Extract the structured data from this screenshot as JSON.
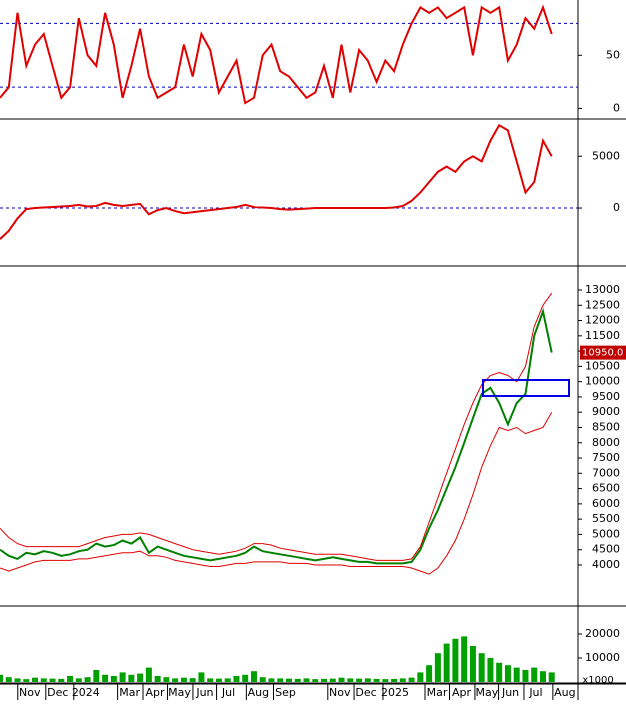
{
  "chart_data": [
    {
      "type": "line",
      "ylim": [
        -9,
        102
      ],
      "yticks": [
        0,
        50
      ],
      "levels": [
        20,
        80
      ],
      "xlim": [
        0,
        66
      ],
      "series": [
        {
          "color": "#e00000",
          "values": [
            10,
            20,
            90,
            40,
            60,
            70,
            40,
            10,
            20,
            85,
            50,
            40,
            90,
            60,
            10,
            40,
            75,
            30,
            10,
            15,
            20,
            60,
            30,
            70,
            55,
            15,
            30,
            45,
            5,
            10,
            50,
            60,
            35,
            30,
            20,
            10,
            15,
            40,
            10,
            60,
            15,
            55,
            45,
            25,
            45,
            35,
            60,
            80,
            95,
            90,
            95,
            85,
            90,
            95,
            50,
            95,
            90,
            95,
            45,
            60,
            85,
            75,
            95,
            70
          ]
        }
      ]
    },
    {
      "type": "line",
      "ylim": [
        -5500,
        8500
      ],
      "yticks": [
        0,
        5000
      ],
      "levels": [
        0
      ],
      "xlim": [
        0,
        66
      ],
      "series": [
        {
          "color": "#e00000",
          "values": [
            -3000,
            -2200,
            -1000,
            -100,
            0,
            50,
            100,
            150,
            200,
            300,
            150,
            200,
            500,
            300,
            200,
            300,
            400,
            -600,
            -200,
            0,
            -300,
            -500,
            -400,
            -300,
            -200,
            -100,
            0,
            100,
            300,
            100,
            50,
            0,
            -100,
            -150,
            -100,
            -50,
            0,
            0,
            0,
            0,
            0,
            0,
            0,
            0,
            0,
            50,
            200,
            700,
            1500,
            2500,
            3500,
            4000,
            3500,
            4500,
            5000,
            4500,
            6500,
            8000,
            7500,
            4500,
            1500,
            2500,
            6500,
            5000
          ]
        }
      ]
    },
    {
      "type": "line",
      "ylim": [
        2690,
        13720
      ],
      "yticks": [
        4000,
        4500,
        5000,
        5500,
        6000,
        6500,
        7000,
        7500,
        8000,
        8500,
        9000,
        9500,
        10000,
        10500,
        11000,
        11500,
        12000,
        12500,
        13000
      ],
      "xlim": [
        0,
        66
      ],
      "last_price": {
        "value": 10950,
        "label": "10950.0"
      },
      "series": [
        {
          "color": "#008000",
          "values": [
            4500,
            4300,
            4200,
            4400,
            4350,
            4450,
            4400,
            4300,
            4350,
            4450,
            4500,
            4700,
            4600,
            4650,
            4800,
            4700,
            4900,
            4400,
            4600,
            4500,
            4400,
            4300,
            4250,
            4200,
            4150,
            4200,
            4250,
            4300,
            4400,
            4600,
            4450,
            4400,
            4350,
            4300,
            4250,
            4200,
            4150,
            4200,
            4250,
            4200,
            4150,
            4100,
            4100,
            4050,
            4050,
            4050,
            4050,
            4100,
            4500,
            5200,
            5800,
            6500,
            7200,
            8000,
            8800,
            9600,
            9800,
            9300,
            8600,
            9300,
            9600,
            11500,
            12300,
            10950
          ]
        },
        {
          "color": "#e00000",
          "values": [
            5200,
            4900,
            4700,
            4600,
            4600,
            4600,
            4600,
            4600,
            4600,
            4600,
            4700,
            4800,
            4900,
            4950,
            5000,
            5000,
            5050,
            5000,
            4900,
            4800,
            4700,
            4600,
            4500,
            4450,
            4400,
            4350,
            4400,
            4450,
            4550,
            4700,
            4700,
            4650,
            4550,
            4500,
            4450,
            4400,
            4350,
            4350,
            4350,
            4350,
            4300,
            4250,
            4200,
            4150,
            4150,
            4150,
            4150,
            4200,
            4600,
            5400,
            6200,
            7000,
            7800,
            8600,
            9300,
            9900,
            10200,
            10300,
            10200,
            10000,
            10500,
            11800,
            12500,
            12900
          ]
        },
        {
          "color": "#e00000",
          "values": [
            3900,
            3800,
            3900,
            4000,
            4100,
            4150,
            4150,
            4150,
            4150,
            4200,
            4200,
            4250,
            4300,
            4350,
            4400,
            4400,
            4450,
            4300,
            4300,
            4250,
            4150,
            4100,
            4050,
            4000,
            3950,
            3950,
            4000,
            4050,
            4050,
            4100,
            4100,
            4100,
            4100,
            4050,
            4050,
            4050,
            4000,
            4000,
            4000,
            4000,
            3950,
            3950,
            3950,
            3950,
            3950,
            3950,
            3950,
            3900,
            3800,
            3700,
            3900,
            4300,
            4800,
            5500,
            6300,
            7200,
            7900,
            8500,
            8400,
            8500,
            8300,
            8400,
            8500,
            9000
          ]
        }
      ]
    },
    {
      "type": "bar",
      "ylim": [
        0,
        30000
      ],
      "yticks": [
        10000,
        20000
      ],
      "unit_label": "x1000",
      "xlim": [
        0,
        66
      ],
      "xticks": [
        {
          "value": 3.4,
          "label": "Nov"
        },
        {
          "value": 6.6,
          "label": "Dec"
        },
        {
          "value": 9.8,
          "label": "2024"
        },
        {
          "value": 14.8,
          "label": "Mar"
        },
        {
          "value": 17.7,
          "label": "Apr"
        },
        {
          "value": 20.5,
          "label": "May"
        },
        {
          "value": 23.4,
          "label": "Jun"
        },
        {
          "value": 26.1,
          "label": "Jul"
        },
        {
          "value": 29.5,
          "label": "Aug"
        },
        {
          "value": 32.6,
          "label": "Sep"
        },
        {
          "value": 38.8,
          "label": "Nov"
        },
        {
          "value": 41.8,
          "label": "Dec"
        },
        {
          "value": 45.1,
          "label": "2025"
        },
        {
          "value": 49.9,
          "label": "Mar"
        },
        {
          "value": 52.7,
          "label": "Apr"
        },
        {
          "value": 55.6,
          "label": "May"
        },
        {
          "value": 58.3,
          "label": "Jun"
        },
        {
          "value": 61.2,
          "label": "Jul"
        },
        {
          "value": 64.5,
          "label": "Aug"
        }
      ],
      "color": "#00a000",
      "values": [
        3000,
        2000,
        1500,
        1200,
        1800,
        1500,
        1400,
        1300,
        2500,
        1500,
        2000,
        5000,
        3000,
        2500,
        4000,
        3000,
        3500,
        6000,
        2500,
        2000,
        1500,
        1800,
        1600,
        4000,
        1500,
        1400,
        1500,
        2500,
        3000,
        4500,
        2000,
        1500,
        1500,
        1400,
        1300,
        1500,
        1200,
        1300,
        1400,
        1800,
        1500,
        1400,
        1500,
        1300,
        1200,
        1300,
        1500,
        1800,
        4000,
        7000,
        12000,
        16000,
        18000,
        19000,
        15000,
        12000,
        10000,
        8000,
        7000,
        6000,
        5000,
        6000,
        4500,
        4000
      ]
    }
  ]
}
